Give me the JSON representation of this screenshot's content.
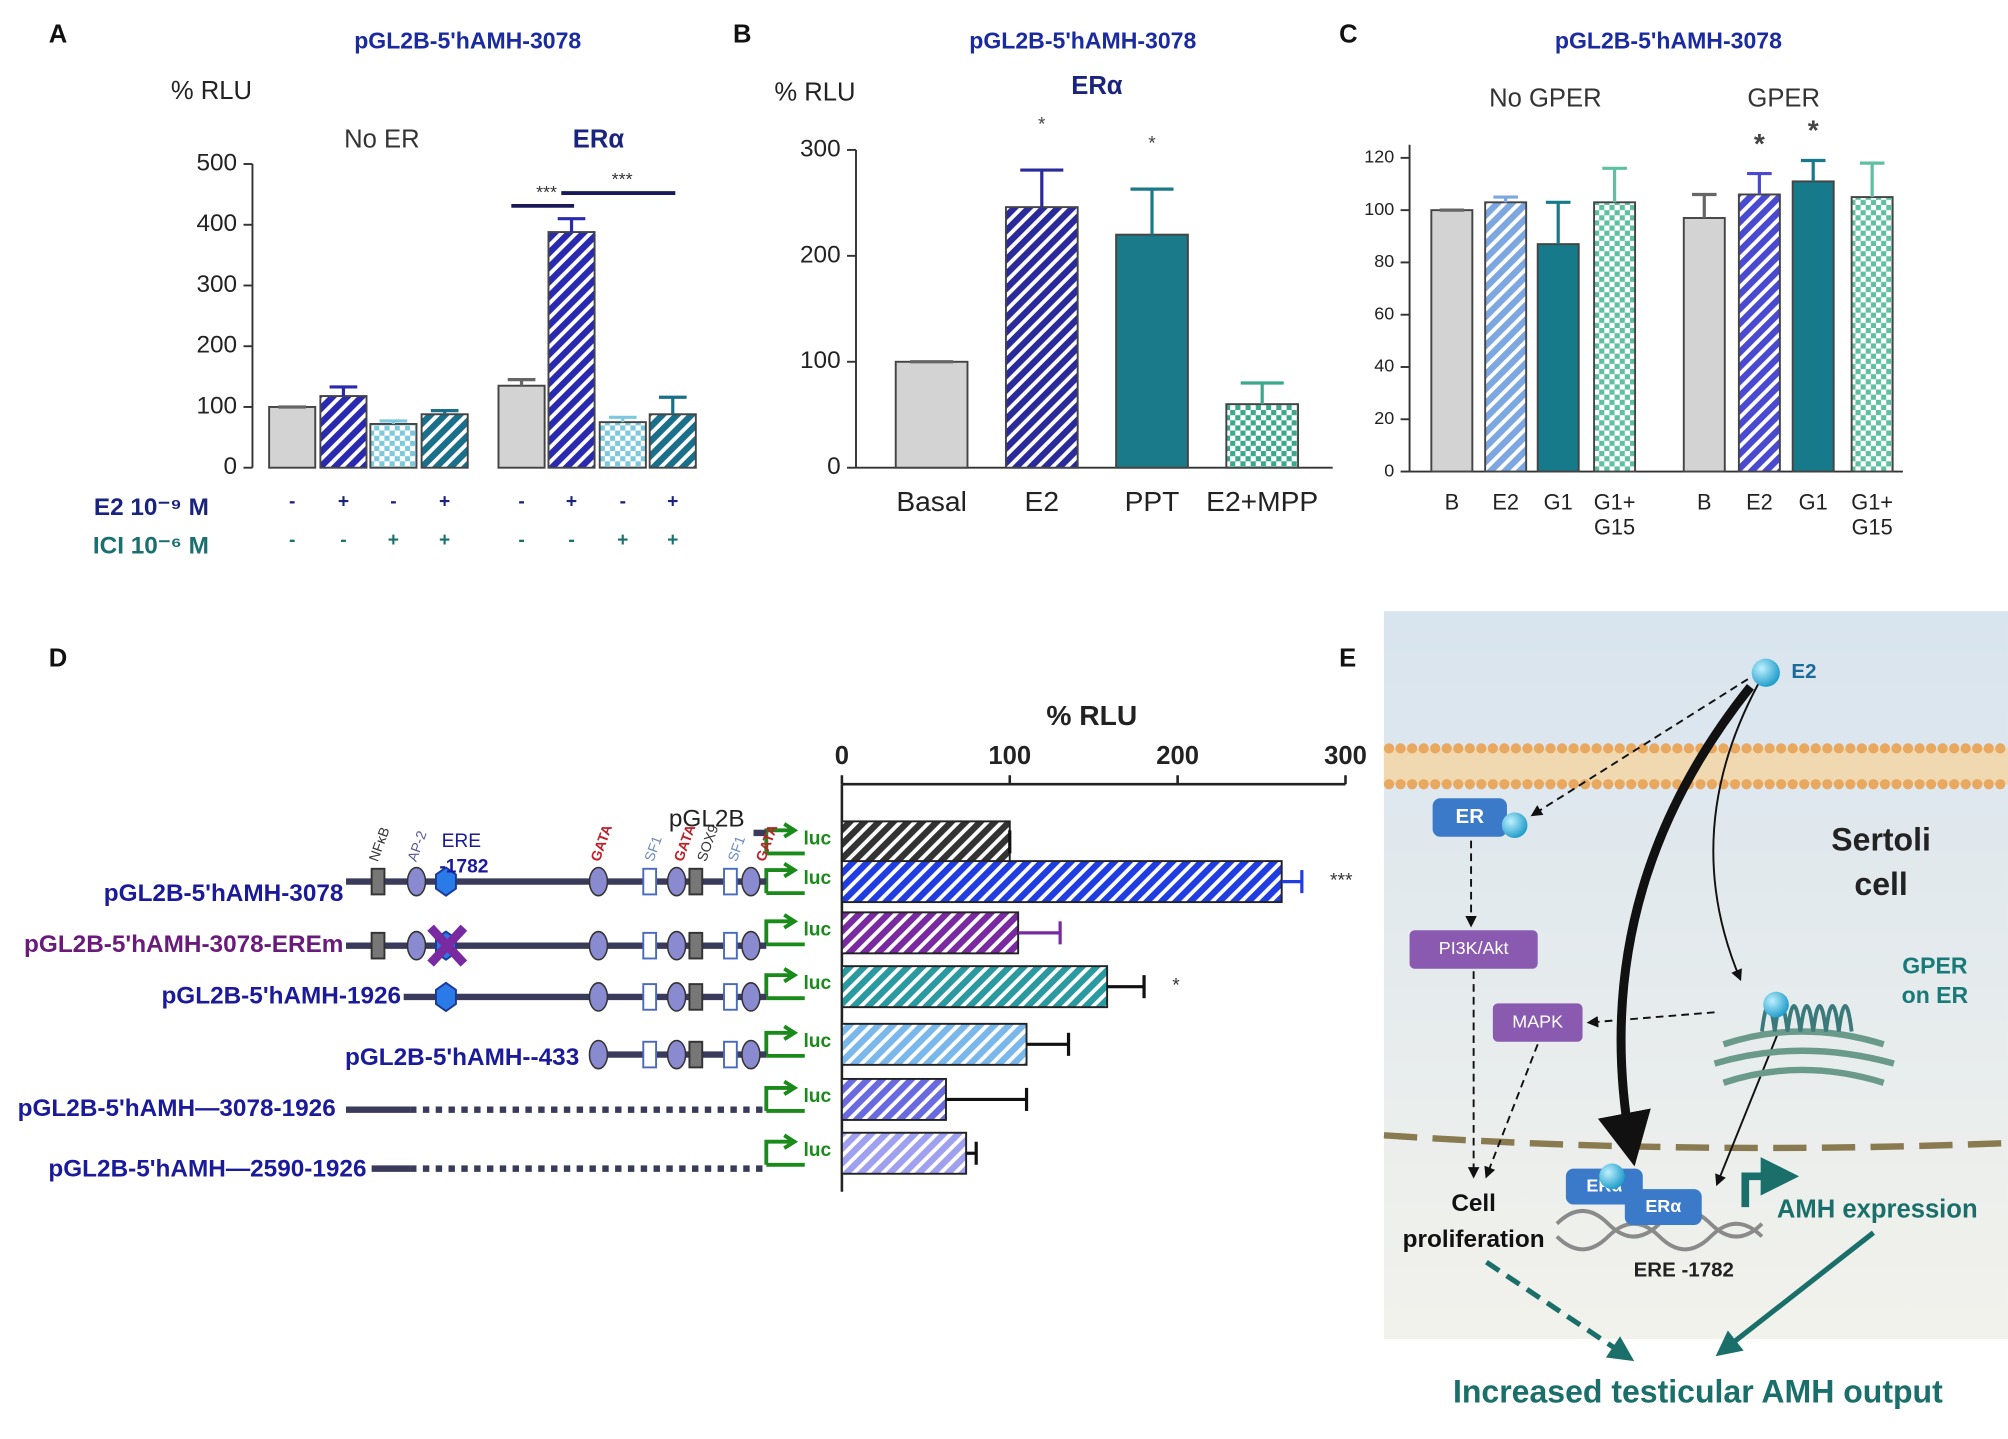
{
  "figure": {
    "panels": [
      "A",
      "B",
      "C",
      "D",
      "E"
    ]
  },
  "chart_data": [
    {
      "type": "bar",
      "title": "pGL2B-5'hAMH-3078",
      "ylabel": "% RLU",
      "groups": [
        "No ER",
        "ERα"
      ],
      "values": [
        100,
        118,
        72,
        88,
        135,
        388,
        75,
        88
      ],
      "errors": [
        0,
        15,
        5,
        6,
        10,
        22,
        8,
        28
      ],
      "colors": [
        "#d3d3d3",
        "#2a2ab0",
        "#7cc8dc",
        "#1a6f8a",
        "#d3d3d3",
        "#2a2ab0",
        "#7cc8dc",
        "#1a6f8a"
      ],
      "patterns": [
        "solid",
        "hatch",
        "check",
        "hatch",
        "solid",
        "hatch",
        "check",
        "hatch"
      ],
      "conditions": [
        {
          "name": "E2 10⁻⁹ M",
          "color": "#1a237e",
          "values": [
            "-",
            "+",
            "-",
            "+",
            "-",
            "+",
            "-",
            "+"
          ]
        },
        {
          "name": "ICI 10⁻⁶ M",
          "color": "#1a6f6f",
          "values": [
            "-",
            "-",
            "+",
            "+",
            "-",
            "-",
            "+",
            "+"
          ]
        }
      ],
      "annotations": [
        {
          "text": "***",
          "bars": [
            4,
            5
          ]
        },
        {
          "text": "***",
          "bars": [
            5,
            7
          ]
        }
      ],
      "ylim": [
        0,
        500
      ],
      "yticks": [
        0,
        100,
        200,
        300,
        400,
        500
      ]
    },
    {
      "type": "bar",
      "title": "pGL2B-5'hAMH-3078",
      "ylabel": "% RLU",
      "groups": [
        "ERα"
      ],
      "categories": [
        "Basal",
        "E2",
        "PPT",
        "E2+MPP"
      ],
      "values": [
        100,
        246,
        220,
        60
      ],
      "errors": [
        0,
        35,
        43,
        20
      ],
      "colors": [
        "#d3d3d3",
        "#2a2a9a",
        "#1a7a8a",
        "#3aa88a"
      ],
      "patterns": [
        "solid",
        "hatch",
        "solid",
        "check"
      ],
      "annotations": [
        {
          "text": "*",
          "bars": [
            1
          ]
        },
        {
          "text": "*",
          "bars": [
            2
          ]
        }
      ],
      "ylim": [
        0,
        300
      ],
      "yticks": [
        0,
        100,
        200,
        300
      ]
    },
    {
      "type": "bar",
      "title": "pGL2B-5'hAMH-3078",
      "groups": [
        "No GPER",
        "GPER"
      ],
      "categories": [
        "B",
        "E2",
        "G1",
        "G1+\nG15",
        "B",
        "E2",
        "G1",
        "G1+\nG15"
      ],
      "values": [
        100,
        103,
        87,
        103,
        97,
        106,
        111,
        105
      ],
      "errors": [
        0,
        2,
        16,
        13,
        9,
        8,
        8,
        13
      ],
      "colors": [
        "#d3d3d3",
        "#7da7e0",
        "#167a8a",
        "#5ec0a0",
        "#d3d3d3",
        "#4a4ad0",
        "#167a8a",
        "#5ec0a0"
      ],
      "patterns": [
        "solid",
        "hatch",
        "solid",
        "check",
        "solid",
        "hatch",
        "solid",
        "check"
      ],
      "annotations": [
        {
          "text": "*",
          "bars": [
            5
          ]
        },
        {
          "text": "*",
          "bars": [
            6
          ]
        }
      ],
      "ylim": [
        0,
        125
      ],
      "yticks": [
        0,
        20,
        40,
        60,
        80,
        100,
        120
      ]
    },
    {
      "type": "bar",
      "orientation": "horizontal",
      "xlabel": "% RLU",
      "categories": [
        "pGL2B",
        "pGL2B-5'hAMH-3078",
        "pGL2B-5'hAMH-3078-EREm",
        "pGL2B-5'hAMH-1926",
        "pGL2B-5'hAMH--433",
        "pGL2B-5'hAMH—3078-1926",
        "pGL2B-5'hAMH—2590-1926"
      ],
      "values": [
        100,
        262,
        105,
        158,
        110,
        62,
        74
      ],
      "errors": [
        0,
        12,
        25,
        22,
        25,
        48,
        6
      ],
      "colors": [
        "#333333",
        "#1f3de0",
        "#7a2aa0",
        "#2a9aa0",
        "#7ab8ec",
        "#6a6ae0",
        "#a0a0f0"
      ],
      "patterns": [
        "hatch",
        "hatch",
        "hatch",
        "hatch",
        "hatch",
        "hatch",
        "hatch"
      ],
      "annotations": [
        {
          "text": "***",
          "bars": [
            1
          ]
        },
        {
          "text": "*",
          "bars": [
            3
          ]
        }
      ],
      "xlim": [
        0,
        300
      ],
      "xticks": [
        0,
        100,
        200,
        300
      ]
    }
  ],
  "promoter_map": {
    "reporter": "luc",
    "ere": [
      "ERE",
      "-1782"
    ],
    "element_labels": [
      "NFκB",
      "AP-2",
      "GATA",
      "SF1",
      "GATA",
      "SOX9",
      "SF1",
      "GATA"
    ]
  },
  "diagram": {
    "ligand": "E2",
    "receptor": "ER",
    "cell": [
      "Sertoli",
      "cell"
    ],
    "pi3k": "PI3K/Akt",
    "mapk": "MAPK",
    "gper": [
      "GPER",
      "on ER"
    ],
    "proliferation": [
      "Cell",
      "proliferation"
    ],
    "era": "ERα",
    "ere": "ERE -1782",
    "expression": "AMH expression",
    "output": "Increased testicular AMH output"
  }
}
